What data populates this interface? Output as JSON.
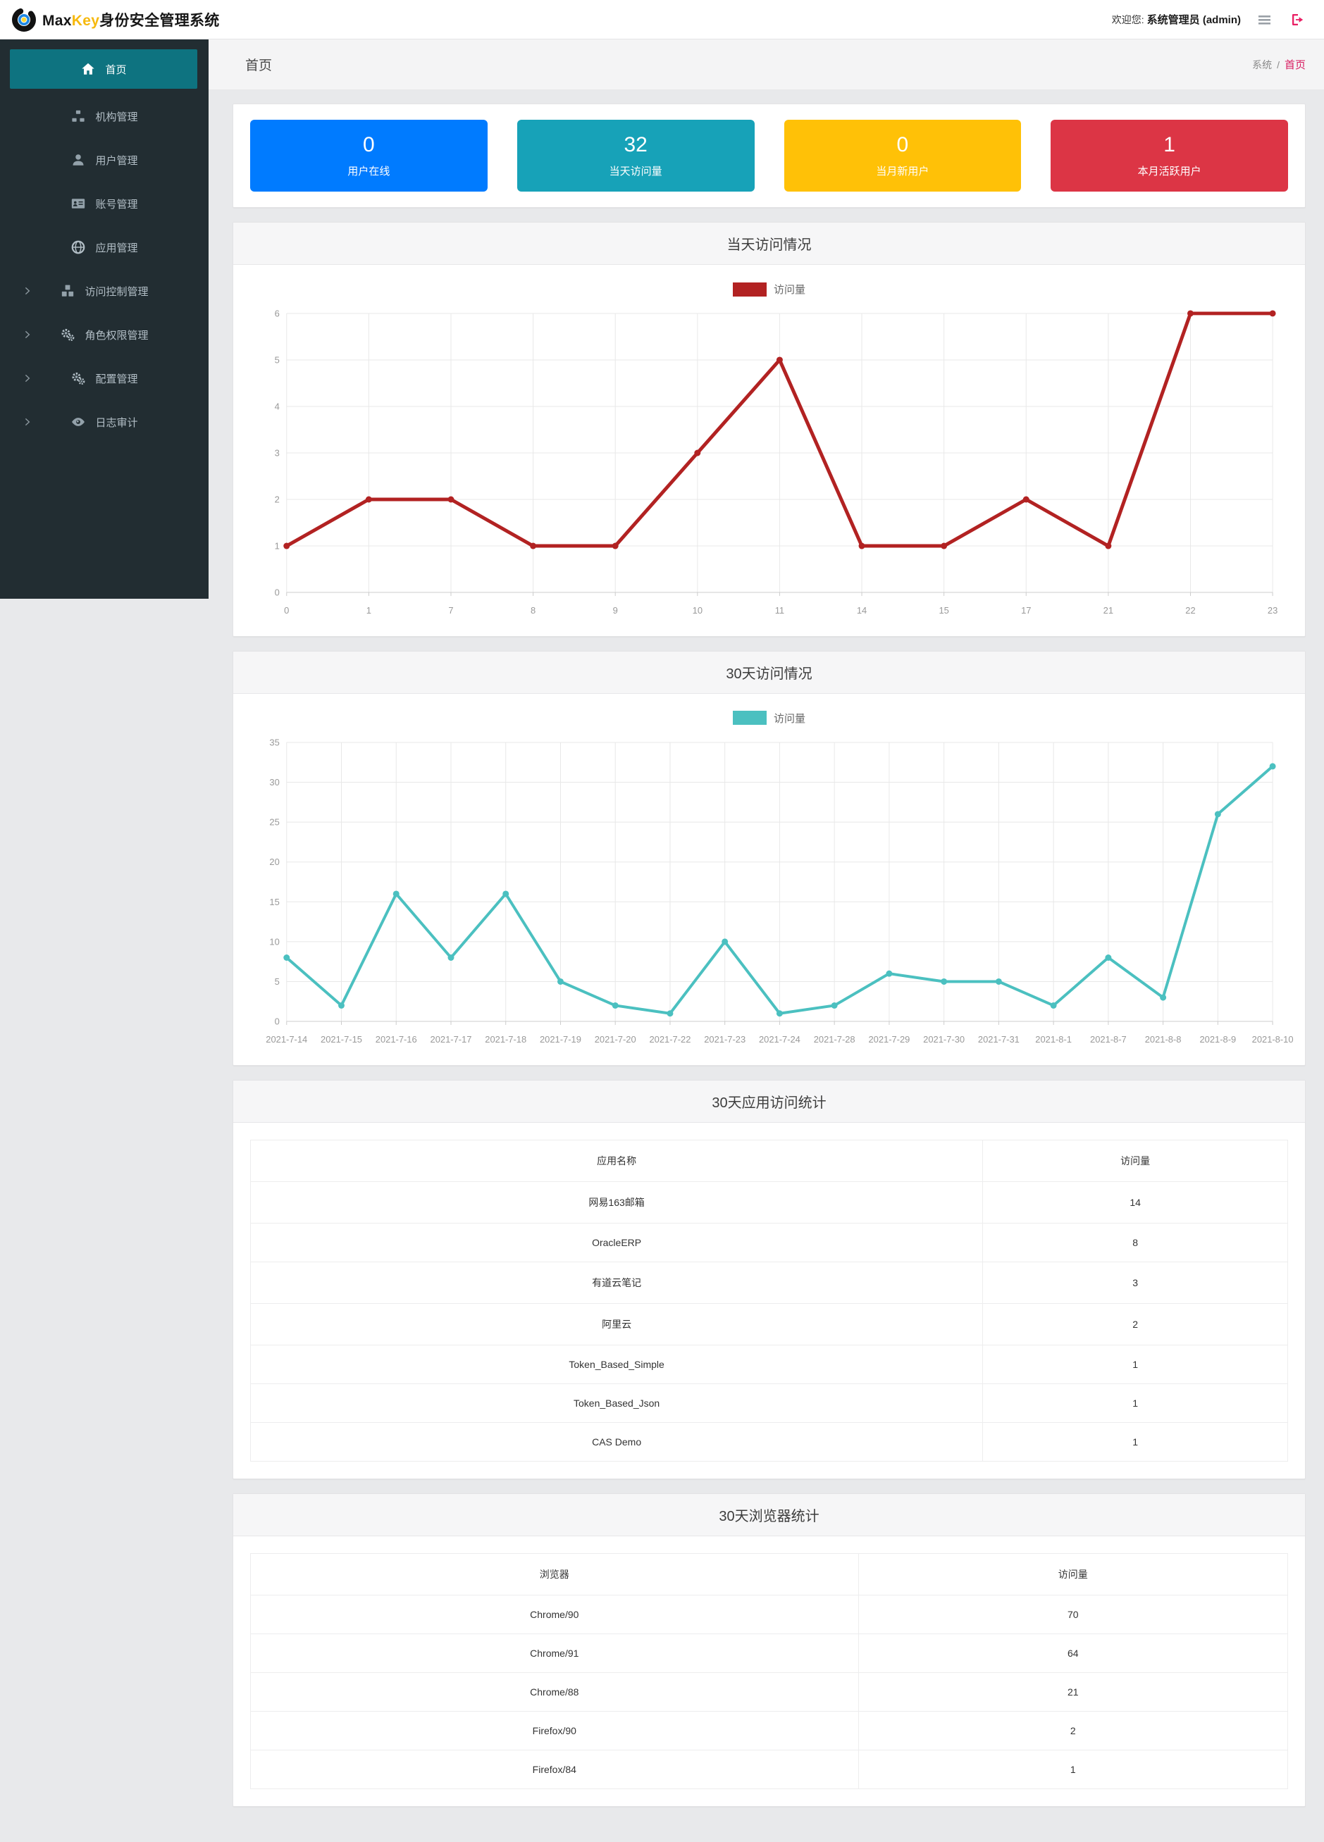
{
  "header": {
    "brand": {
      "max": "Max",
      "key": "Key",
      "suffix": "身份安全管理系统",
      "logo_icon": "maxkey-logo-icon",
      "brand_gold": "#f6b90e"
    },
    "welcome_prefix": "欢迎您:",
    "welcome_user": "系统管理员 (admin)",
    "menu_icon": "hamburger-icon",
    "logout_icon": "logout-icon",
    "logout_color": "#e91e63"
  },
  "sidebar": {
    "bg_color": "#222d32",
    "active_color": "#0e7380",
    "items": [
      {
        "name": "home",
        "label": "首页",
        "icon": "home-icon",
        "active": true,
        "expandable": false
      },
      {
        "name": "org",
        "label": "机构管理",
        "icon": "sitemap-icon",
        "active": false,
        "expandable": false
      },
      {
        "name": "user",
        "label": "用户管理",
        "icon": "user-icon",
        "active": false,
        "expandable": false
      },
      {
        "name": "account",
        "label": "账号管理",
        "icon": "id-card-icon",
        "active": false,
        "expandable": false
      },
      {
        "name": "app",
        "label": "应用管理",
        "icon": "globe-icon",
        "active": false,
        "expandable": false
      },
      {
        "name": "access",
        "label": "访问控制管理",
        "icon": "cubes-icon",
        "active": false,
        "expandable": true
      },
      {
        "name": "role",
        "label": "角色权限管理",
        "icon": "gears-icon",
        "active": false,
        "expandable": true
      },
      {
        "name": "config",
        "label": "配置管理",
        "icon": "gears-icon",
        "active": false,
        "expandable": true
      },
      {
        "name": "audit",
        "label": "日志审计",
        "icon": "eye-icon",
        "active": false,
        "expandable": true
      }
    ]
  },
  "breadcrumb": {
    "page_title": "首页",
    "root": "系统",
    "separator": "/",
    "current": "首页",
    "current_color": "#d81b60"
  },
  "cards": [
    {
      "name": "users-online",
      "value": "0",
      "label": "用户在线",
      "color": "#007bff"
    },
    {
      "name": "today-visits",
      "value": "32",
      "label": "当天访问量",
      "color": "#17a2b8"
    },
    {
      "name": "month-new-users",
      "value": "0",
      "label": "当月新用户",
      "color": "#ffc107"
    },
    {
      "name": "month-active-users",
      "value": "1",
      "label": "本月活跃用户",
      "color": "#dc3545"
    }
  ],
  "chart_data": [
    {
      "type": "line",
      "title": "当天访问情况",
      "legend": "访问量",
      "legend_position": "top",
      "color": "#b22222",
      "line_width": 5,
      "grid": true,
      "categories": [
        "0",
        "1",
        "7",
        "8",
        "9",
        "10",
        "11",
        "14",
        "15",
        "17",
        "21",
        "22",
        "23"
      ],
      "values": [
        1,
        2,
        2,
        1,
        1,
        3,
        5,
        1,
        1,
        2,
        1,
        6,
        6
      ],
      "xlabel": "",
      "ylabel": "",
      "ylim": [
        0,
        6
      ],
      "yticks": [
        0,
        1,
        2,
        3,
        4,
        5,
        6
      ]
    },
    {
      "type": "line",
      "title": "30天访问情况",
      "legend": "访问量",
      "legend_position": "top",
      "color": "#4bc0c0",
      "line_width": 4,
      "grid": true,
      "categories": [
        "2021-7-14",
        "2021-7-15",
        "2021-7-16",
        "2021-7-17",
        "2021-7-18",
        "2021-7-19",
        "2021-7-20",
        "2021-7-22",
        "2021-7-23",
        "2021-7-24",
        "2021-7-28",
        "2021-7-29",
        "2021-7-30",
        "2021-7-31",
        "2021-8-1",
        "2021-8-7",
        "2021-8-8",
        "2021-8-9",
        "2021-8-10"
      ],
      "values": [
        8,
        2,
        16,
        8,
        16,
        5,
        2,
        1,
        10,
        1,
        2,
        6,
        5,
        5,
        2,
        8,
        3,
        26,
        32
      ],
      "xlabel": "",
      "ylabel": "",
      "ylim": [
        0,
        35
      ],
      "yticks": [
        0,
        5,
        10,
        15,
        20,
        25,
        30,
        35
      ]
    }
  ],
  "tables": [
    {
      "title": "30天应用访问统计",
      "headers": [
        "应用名称",
        "访问量"
      ],
      "col_split": [
        "70.6%",
        "29.4%"
      ],
      "rows": [
        [
          "网易163邮箱",
          "14"
        ],
        [
          "OracleERP",
          "8"
        ],
        [
          "有道云笔记",
          "3"
        ],
        [
          "阿里云",
          "2"
        ],
        [
          "Token_Based_Simple",
          "1"
        ],
        [
          "Token_Based_Json",
          "1"
        ],
        [
          "CAS Demo",
          "1"
        ]
      ]
    },
    {
      "title": "30天浏览器统计",
      "headers": [
        "浏览器",
        "访问量"
      ],
      "col_split": [
        "58.6%",
        "41.4%"
      ],
      "rows": [
        [
          "Chrome/90",
          "70"
        ],
        [
          "Chrome/91",
          "64"
        ],
        [
          "Chrome/88",
          "21"
        ],
        [
          "Firefox/90",
          "2"
        ],
        [
          "Firefox/84",
          "1"
        ]
      ]
    }
  ]
}
